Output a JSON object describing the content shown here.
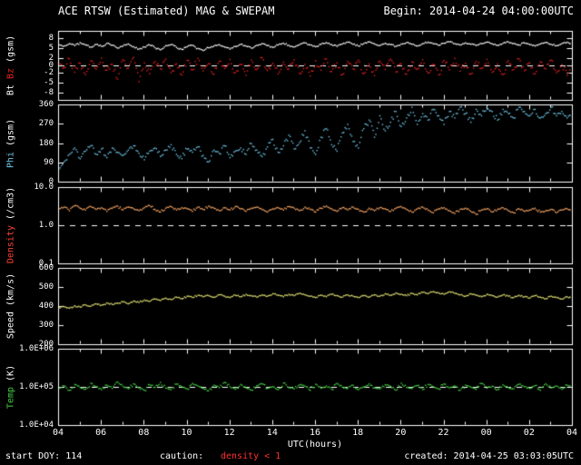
{
  "header": {
    "title": "ACE RTSW (Estimated) MAG & SWEPAM",
    "begin": "Begin: 2014-04-24 04:00:00UTC"
  },
  "footer": {
    "start_doy": "start DOY: 114",
    "caution_label": "caution:",
    "caution_value": "density < 1",
    "caution_color": "#ff3030",
    "created": "created: 2014-04-25 03:03:05UTC"
  },
  "colors": {
    "background": "#000000",
    "frame": "#ffffff",
    "text": "#ffffff",
    "dashed": "#ffffff"
  },
  "chart_data": {
    "type": "scatter",
    "title": "ACE RTSW (Estimated) MAG & SWEPAM",
    "x": {
      "label": "UTC(hours)",
      "span_hours": 24,
      "tick_labels": [
        "04",
        "06",
        "08",
        "10",
        "12",
        "14",
        "16",
        "18",
        "20",
        "22",
        "00",
        "02",
        "04"
      ]
    },
    "panels": [
      {
        "name": "mag",
        "ylabel_parts": [
          {
            "text": "Bt",
            "color": "#ffffff"
          },
          {
            "text": "Bz",
            "color": "#e82020"
          },
          {
            "text": "(gsm)",
            "color": "#ffffff"
          }
        ],
        "scale": "linear",
        "ymin": -10,
        "ymax": 10,
        "yticks": [
          {
            "v": 8,
            "label": "8"
          },
          {
            "v": 5,
            "label": "5"
          },
          {
            "v": 2,
            "label": "2"
          },
          {
            "v": 0,
            "label": "0"
          },
          {
            "v": -2,
            "label": "-2"
          },
          {
            "v": -5,
            "label": "-5"
          },
          {
            "v": -8,
            "label": "-8"
          }
        ],
        "dashed_at": [
          0
        ],
        "series": [
          {
            "name": "Bt",
            "color": "#ffffff",
            "values": [
              6.2,
              5.8,
              6.5,
              5.9,
              6.8,
              6.1,
              5.5,
              6.3,
              5.7,
              6.6,
              6.0,
              5.2,
              5.8,
              6.4,
              5.6,
              4.9,
              5.5,
              6.1,
              5.3,
              4.7,
              5.9,
              6.2,
              5.4,
              4.8,
              5.6,
              6.0,
              5.1,
              4.5,
              5.3,
              5.8,
              6.2,
              5.5,
              4.9,
              5.7,
              6.3,
              5.8,
              5.2,
              6.0,
              6.5,
              5.9,
              5.4,
              6.1,
              6.6,
              6.0,
              5.5,
              6.2,
              6.7,
              6.1,
              5.6,
              6.3,
              6.8,
              6.2,
              5.7,
              6.4,
              6.9,
              6.3,
              5.8,
              6.5,
              7.0,
              6.4,
              5.9,
              6.6,
              6.2,
              5.7,
              6.4,
              6.8,
              6.3,
              5.8,
              6.5,
              6.9,
              6.4,
              6.0,
              6.6,
              7.0,
              6.5,
              6.1,
              6.7,
              6.3,
              5.9,
              6.5,
              6.9,
              6.4,
              6.0,
              6.6,
              7.0,
              6.5,
              6.1,
              6.7,
              6.2,
              5.8,
              6.4,
              6.8,
              6.3,
              5.9,
              6.5,
              6.9,
              6.4
            ]
          },
          {
            "name": "Bz",
            "color": "#e82020",
            "values": [
              1.2,
              -0.5,
              2.1,
              -1.8,
              0.8,
              -2.5,
              1.5,
              -0.9,
              2.3,
              -1.2,
              0.5,
              -3.8,
              1.8,
              -0.6,
              2.5,
              -4.5,
              0.9,
              -2.2,
              1.3,
              -0.8,
              2.0,
              -1.9,
              0.6,
              -2.6,
              1.6,
              -1.1,
              2.2,
              -1.4,
              0.7,
              -2.4,
              1.4,
              -0.7,
              1.9,
              -2.0,
              0.4,
              -2.7,
              1.7,
              -1.0,
              2.4,
              -1.3,
              0.8,
              -2.3,
              1.1,
              -0.9,
              1.8,
              -2.1,
              0.5,
              -2.9,
              1.5,
              -1.2,
              2.1,
              -1.6,
              0.9,
              -2.5,
              1.3,
              -0.8,
              1.7,
              -2.2,
              0.6,
              -2.8,
              1.4,
              -1.0,
              2.0,
              -1.7,
              0.7,
              -2.4,
              1.2,
              -0.9,
              1.8,
              -2.0,
              0.5,
              -2.6,
              1.6,
              -1.1,
              2.2,
              -1.5,
              0.8,
              -2.3,
              1.3,
              -0.7,
              1.9,
              -1.8,
              0.6,
              -2.5,
              1.5,
              -1.0,
              2.1,
              -1.4,
              0.9,
              -2.2,
              1.2,
              -0.8,
              1.7,
              -1.9,
              0.4,
              -2.7,
              1.4
            ]
          }
        ]
      },
      {
        "name": "phi",
        "ylabel_parts": [
          {
            "text": "Phi",
            "color": "#6fc8e8"
          },
          {
            "text": "(gsm)",
            "color": "#ffffff"
          }
        ],
        "scale": "linear",
        "ymin": 0,
        "ymax": 360,
        "yticks": [
          {
            "v": 360,
            "label": "360"
          },
          {
            "v": 270,
            "label": "270"
          },
          {
            "v": 180,
            "label": "180"
          },
          {
            "v": 90,
            "label": "90"
          },
          {
            "v": 0,
            "label": "0"
          }
        ],
        "dashed_at": [],
        "series": [
          {
            "name": "Phi",
            "color": "#6fc8e8",
            "values": [
              60,
              95,
              130,
              160,
              110,
              145,
              170,
              130,
              155,
              115,
              160,
              140,
              125,
              150,
              170,
              135,
              105,
              145,
              160,
              120,
              150,
              175,
              130,
              110,
              155,
              140,
              165,
              125,
              95,
              150,
              135,
              170,
              115,
              145,
              160,
              130,
              180,
              150,
              120,
              165,
              200,
              140,
              170,
              220,
              155,
              185,
              240,
              160,
              130,
              210,
              250,
              175,
              145,
              230,
              270,
              190,
              160,
              250,
              290,
              210,
              310,
              240,
              280,
              330,
              260,
              300,
              350,
              270,
              320,
              290,
              340,
              310,
              270,
              330,
              300,
              350,
              320,
              280,
              340,
              310,
              350,
              330,
              290,
              340,
              320,
              300,
              350,
              330,
              310,
              340,
              300,
              320,
              350,
              310,
              330,
              300,
              320
            ]
          }
        ]
      },
      {
        "name": "density",
        "ylabel_parts": [
          {
            "text": "Density",
            "color": "#ff4433"
          },
          {
            "text": "(/cm3)",
            "color": "#ffffff"
          }
        ],
        "scale": "log",
        "ymin": 0.1,
        "ymax": 10,
        "yticks": [
          {
            "v": 10,
            "label": "10.0"
          },
          {
            "v": 1,
            "label": "1.0"
          },
          {
            "v": 0.1,
            "label": "0.1"
          }
        ],
        "dashed_at": [
          1
        ],
        "series": [
          {
            "name": "Density",
            "color": "#ffaa66",
            "values": [
              2.8,
              3.1,
              2.5,
              3.4,
              2.9,
              2.6,
              3.2,
              2.7,
              3.0,
              2.4,
              2.9,
              3.3,
              2.6,
              3.1,
              2.8,
              2.5,
              3.0,
              3.4,
              2.7,
              2.3,
              2.9,
              3.2,
              2.6,
              3.0,
              2.8,
              2.4,
              3.1,
              2.7,
              3.3,
              2.9,
              2.5,
              3.0,
              2.6,
              3.2,
              2.8,
              2.4,
              2.9,
              3.1,
              2.7,
              2.3,
              2.8,
              3.0,
              2.6,
              3.2,
              2.9,
              2.5,
              3.1,
              2.7,
              2.3,
              2.9,
              3.3,
              2.8,
              2.4,
              3.0,
              2.6,
              3.1,
              2.7,
              2.3,
              2.9,
              2.5,
              3.0,
              2.8,
              2.4,
              2.9,
              3.2,
              2.7,
              2.3,
              2.8,
              3.1,
              2.6,
              2.2,
              2.8,
              3.0,
              2.5,
              2.1,
              2.7,
              2.9,
              2.4,
              2.0,
              2.6,
              2.8,
              2.3,
              2.7,
              3.0,
              2.5,
              2.2,
              2.8,
              2.4,
              2.6,
              2.9,
              2.3,
              2.5,
              2.7,
              2.2,
              2.6,
              2.8,
              2.4
            ]
          }
        ]
      },
      {
        "name": "speed",
        "ylabel_parts": [
          {
            "text": "Speed",
            "color": "#ffffff"
          },
          {
            "text": "(km/s)",
            "color": "#ffffff"
          }
        ],
        "scale": "linear",
        "ymin": 200,
        "ymax": 600,
        "yticks": [
          {
            "v": 600,
            "label": "600"
          },
          {
            "v": 500,
            "label": "500"
          },
          {
            "v": 400,
            "label": "400"
          },
          {
            "v": 300,
            "label": "300"
          },
          {
            "v": 200,
            "label": "200"
          }
        ],
        "dashed_at": [],
        "series": [
          {
            "name": "Speed",
            "color": "#e8e878",
            "values": [
              395,
              400,
              392,
              405,
              398,
              410,
              402,
              415,
              408,
              420,
              412,
              418,
              425,
              415,
              430,
              422,
              435,
              428,
              440,
              432,
              445,
              438,
              450,
              442,
              455,
              448,
              460,
              452,
              458,
              450,
              462,
              455,
              448,
              460,
              452,
              465,
              458,
              450,
              462,
              455,
              468,
              460,
              452,
              465,
              458,
              470,
              462,
              455,
              448,
              460,
              452,
              465,
              458,
              450,
              462,
              455,
              448,
              458,
              450,
              462,
              455,
              468,
              460,
              472,
              465,
              458,
              470,
              462,
              475,
              468,
              480,
              472,
              465,
              478,
              470,
              462,
              455,
              468,
              460,
              452,
              465,
              458,
              450,
              462,
              455,
              448,
              460,
              452,
              445,
              458,
              450,
              442,
              455,
              448,
              440,
              452,
              445
            ]
          }
        ]
      },
      {
        "name": "temp",
        "ylabel_parts": [
          {
            "text": "Temp",
            "color": "#44cc44"
          },
          {
            "text": "(K)",
            "color": "#ffffff"
          }
        ],
        "scale": "log",
        "ymin": 10000,
        "ymax": 1000000,
        "yticks": [
          {
            "v": 1000000,
            "label": "1.0E+06"
          },
          {
            "v": 100000,
            "label": "1.0E+05"
          },
          {
            "v": 10000,
            "label": "1.0E+04"
          }
        ],
        "dashed_at": [
          100000
        ],
        "series": [
          {
            "name": "Temp",
            "color": "#44cc44",
            "values": [
              95000,
              110000,
              85000,
              120000,
              100000,
              90000,
              130000,
              105000,
              88000,
              115000,
              95000,
              140000,
              108000,
              92000,
              125000,
              98000,
              85000,
              118000,
              102000,
              135000,
              96000,
              88000,
              122000,
              105000,
              92000,
              128000,
              110000,
              95000,
              82000,
              115000,
              100000,
              135000,
              105000,
              90000,
              120000,
              98000,
              85000,
              112000,
              125000,
              95000,
              105000,
              88000,
              130000,
              100000,
              92000,
              118000,
              108000,
              85000,
              122000,
              96000,
              110000,
              90000,
              128000,
              102000,
              95000,
              115000,
              88000,
              105000,
              125000,
              98000,
              92000,
              118000,
              108000,
              85000,
              130000,
              100000,
              95000,
              112000,
              88000,
              120000,
              105000,
              92000,
              125000,
              98000,
              110000,
              85000,
              115000,
              102000,
              90000,
              128000,
              96000,
              108000,
              88000,
              118000,
              100000,
              92000,
              122000,
              105000,
              95000,
              112000,
              85000,
              125000,
              98000,
              108000,
              90000,
              115000,
              100000
            ]
          }
        ]
      }
    ]
  }
}
